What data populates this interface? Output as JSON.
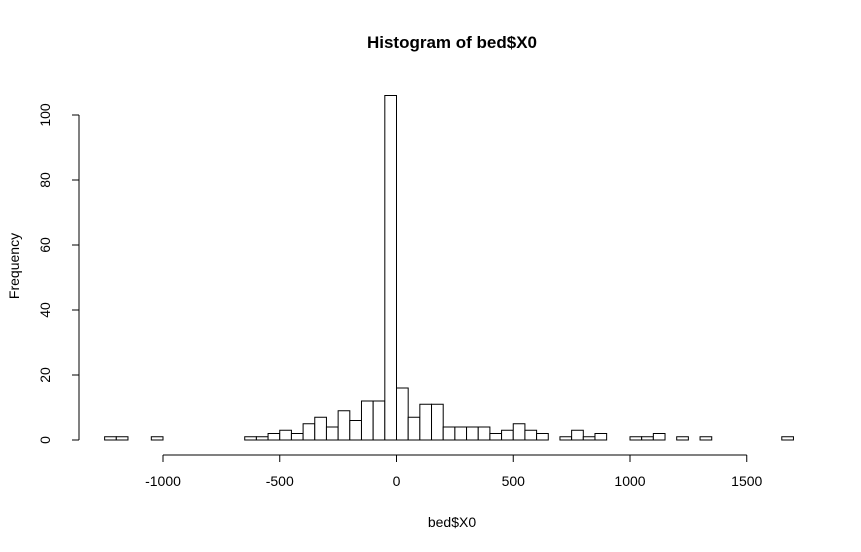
{
  "chart_data": {
    "type": "bar",
    "title": "Histogram of bed$X0",
    "xlabel": "bed$X0",
    "ylabel": "Frequency",
    "x_ticks": [
      -1000,
      -500,
      0,
      500,
      1000,
      1500
    ],
    "x_tick_labels": [
      "-1000",
      "-500",
      "0",
      "500",
      "1000",
      "1500"
    ],
    "y_ticks": [
      0,
      20,
      40,
      60,
      80,
      100
    ],
    "y_tick_labels": [
      "0",
      "20",
      "40",
      "60",
      "80",
      "100"
    ],
    "ylim": [
      0,
      106
    ],
    "bin_width": 50,
    "bins": [
      {
        "start": -1250,
        "count": 1
      },
      {
        "start": -1200,
        "count": 1
      },
      {
        "start": -1150,
        "count": 0
      },
      {
        "start": -1100,
        "count": 0
      },
      {
        "start": -1050,
        "count": 1
      },
      {
        "start": -1000,
        "count": 0
      },
      {
        "start": -950,
        "count": 0
      },
      {
        "start": -900,
        "count": 0
      },
      {
        "start": -850,
        "count": 0
      },
      {
        "start": -800,
        "count": 0
      },
      {
        "start": -750,
        "count": 0
      },
      {
        "start": -700,
        "count": 0
      },
      {
        "start": -650,
        "count": 1
      },
      {
        "start": -600,
        "count": 1
      },
      {
        "start": -550,
        "count": 2
      },
      {
        "start": -500,
        "count": 3
      },
      {
        "start": -450,
        "count": 2
      },
      {
        "start": -400,
        "count": 5
      },
      {
        "start": -350,
        "count": 7
      },
      {
        "start": -300,
        "count": 4
      },
      {
        "start": -250,
        "count": 9
      },
      {
        "start": -200,
        "count": 6
      },
      {
        "start": -150,
        "count": 12
      },
      {
        "start": -100,
        "count": 12
      },
      {
        "start": -50,
        "count": 106
      },
      {
        "start": 0,
        "count": 16
      },
      {
        "start": 50,
        "count": 7
      },
      {
        "start": 100,
        "count": 11
      },
      {
        "start": 150,
        "count": 11
      },
      {
        "start": 200,
        "count": 4
      },
      {
        "start": 250,
        "count": 4
      },
      {
        "start": 300,
        "count": 4
      },
      {
        "start": 350,
        "count": 4
      },
      {
        "start": 400,
        "count": 2
      },
      {
        "start": 450,
        "count": 3
      },
      {
        "start": 500,
        "count": 5
      },
      {
        "start": 550,
        "count": 3
      },
      {
        "start": 600,
        "count": 2
      },
      {
        "start": 650,
        "count": 0
      },
      {
        "start": 700,
        "count": 1
      },
      {
        "start": 750,
        "count": 3
      },
      {
        "start": 800,
        "count": 1
      },
      {
        "start": 850,
        "count": 2
      },
      {
        "start": 900,
        "count": 0
      },
      {
        "start": 950,
        "count": 0
      },
      {
        "start": 1000,
        "count": 1
      },
      {
        "start": 1050,
        "count": 1
      },
      {
        "start": 1100,
        "count": 2
      },
      {
        "start": 1150,
        "count": 0
      },
      {
        "start": 1200,
        "count": 1
      },
      {
        "start": 1250,
        "count": 0
      },
      {
        "start": 1300,
        "count": 1
      },
      {
        "start": 1350,
        "count": 0
      },
      {
        "start": 1400,
        "count": 0
      },
      {
        "start": 1450,
        "count": 0
      },
      {
        "start": 1500,
        "count": 0
      },
      {
        "start": 1550,
        "count": 0
      },
      {
        "start": 1600,
        "count": 0
      },
      {
        "start": 1650,
        "count": 1
      }
    ],
    "grid": false,
    "bar_fill": "#ffffff",
    "bar_stroke": "#000000"
  }
}
